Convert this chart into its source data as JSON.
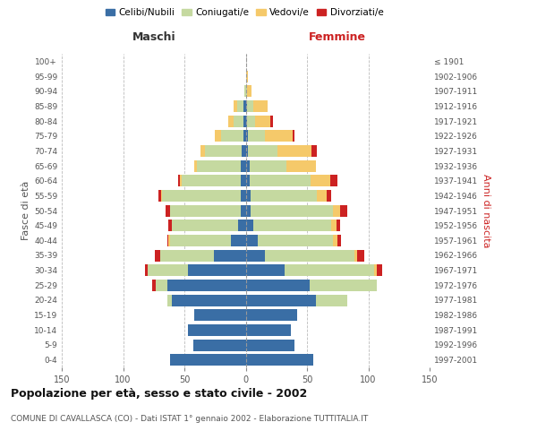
{
  "age_groups": [
    "0-4",
    "5-9",
    "10-14",
    "15-19",
    "20-24",
    "25-29",
    "30-34",
    "35-39",
    "40-44",
    "45-49",
    "50-54",
    "55-59",
    "60-64",
    "65-69",
    "70-74",
    "75-79",
    "80-84",
    "85-89",
    "90-94",
    "95-99",
    "100+"
  ],
  "birth_years": [
    "1997-2001",
    "1992-1996",
    "1987-1991",
    "1982-1986",
    "1977-1981",
    "1972-1976",
    "1967-1971",
    "1962-1966",
    "1957-1961",
    "1952-1956",
    "1947-1951",
    "1942-1946",
    "1937-1941",
    "1932-1936",
    "1927-1931",
    "1922-1926",
    "1917-1921",
    "1912-1916",
    "1907-1911",
    "1902-1906",
    "≤ 1901"
  ],
  "male": {
    "celibi": [
      62,
      43,
      47,
      42,
      60,
      64,
      47,
      26,
      12,
      6,
      4,
      4,
      4,
      4,
      3,
      2,
      2,
      2,
      0,
      0,
      0
    ],
    "coniugati": [
      0,
      0,
      0,
      0,
      4,
      9,
      33,
      44,
      50,
      54,
      58,
      64,
      48,
      36,
      30,
      18,
      8,
      5,
      1,
      0,
      0
    ],
    "vedovi": [
      0,
      0,
      0,
      0,
      0,
      0,
      0,
      0,
      1,
      0,
      0,
      1,
      2,
      2,
      4,
      5,
      4,
      3,
      0,
      0,
      0
    ],
    "divorziati": [
      0,
      0,
      0,
      0,
      0,
      3,
      2,
      4,
      1,
      3,
      3,
      2,
      1,
      0,
      0,
      0,
      0,
      0,
      0,
      0,
      0
    ]
  },
  "female": {
    "nubili": [
      55,
      40,
      37,
      42,
      57,
      52,
      32,
      16,
      10,
      6,
      4,
      4,
      3,
      3,
      2,
      2,
      1,
      1,
      0,
      0,
      0
    ],
    "coniugate": [
      0,
      0,
      0,
      0,
      26,
      55,
      73,
      73,
      61,
      64,
      67,
      54,
      50,
      30,
      24,
      14,
      7,
      5,
      1,
      0,
      0
    ],
    "vedove": [
      0,
      0,
      0,
      0,
      0,
      0,
      2,
      2,
      4,
      4,
      6,
      8,
      16,
      24,
      28,
      22,
      12,
      12,
      4,
      2,
      0
    ],
    "divorziate": [
      0,
      0,
      0,
      0,
      0,
      0,
      4,
      6,
      3,
      3,
      6,
      4,
      6,
      0,
      4,
      2,
      2,
      0,
      0,
      0,
      0
    ]
  },
  "colors": {
    "celibi": "#3a6ea5",
    "coniugati": "#c5d9a0",
    "vedovi": "#f5c96a",
    "divorziati": "#cc2222"
  },
  "title": "Popolazione per età, sesso e stato civile - 2002",
  "subtitle": "COMUNE DI CAVALLASCA (CO) - Dati ISTAT 1° gennaio 2002 - Elaborazione TUTTITALIA.IT",
  "xlabel_left": "Maschi",
  "xlabel_right": "Femmine",
  "ylabel_left": "Fasce di età",
  "ylabel_right": "Anni di nascita",
  "xlim": 150,
  "legend_labels": [
    "Celibi/Nubili",
    "Coniugati/e",
    "Vedovi/e",
    "Divorziati/e"
  ],
  "bg_color": "#ffffff",
  "grid_color": "#bbbbbb"
}
